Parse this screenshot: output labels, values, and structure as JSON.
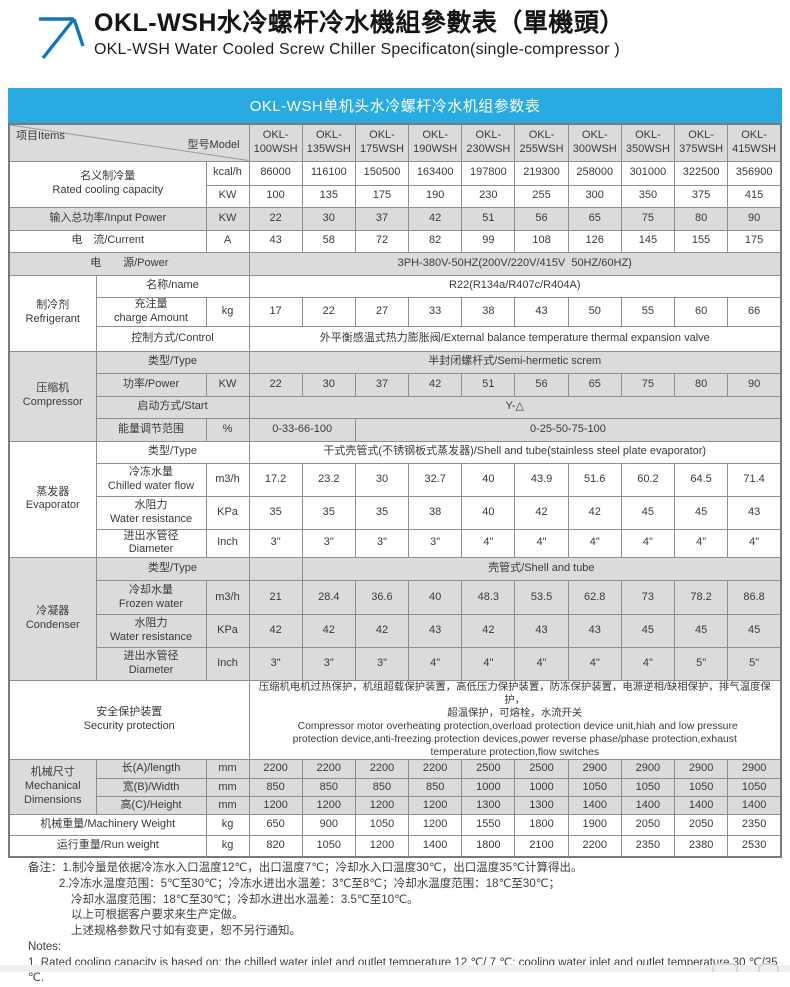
{
  "header": {
    "title_zh": "OKL-WSH水冷螺杆冷水機組參數表（單機頭）",
    "title_en": "OKL-WSH Water Cooled Screw Chiller Specificaton(single-compressor )"
  },
  "colors": {
    "banner_cyan": "#29ABE2",
    "row_gray": "#DBDBDB",
    "arrow_blue": "#1274BE",
    "border_gray": "#8F8F8F"
  },
  "table": {
    "banner": "OKL-WSH单机头水冷螺杆冷水机组参数表",
    "corner": {
      "items_label": "项目Items",
      "model_label": "型号Model"
    },
    "models": [
      "OKL-100WSH",
      "OKL-135WSH",
      "OKL-175WSH",
      "OKL-190WSH",
      "OKL-230WSH",
      "OKL-255WSH",
      "OKL-300WSH",
      "OKL-350WSH",
      "OKL-375WSH",
      "OKL-415WSH"
    ],
    "rows": [
      {
        "cells": [
          {
            "corner": true,
            "c": 3,
            "k": "corner"
          },
          {
            "t": [
              "OKL-",
              "100WSH"
            ],
            "k": "model"
          },
          {
            "t": [
              "OKL-",
              "135WSH"
            ],
            "k": "model"
          },
          {
            "t": [
              "OKL-",
              "175WSH"
            ],
            "k": "model"
          },
          {
            "t": [
              "OKL-",
              "190WSH"
            ],
            "k": "model"
          },
          {
            "t": [
              "OKL-",
              "230WSH"
            ],
            "k": "model"
          },
          {
            "t": [
              "OKL-",
              "255WSH"
            ],
            "k": "model"
          },
          {
            "t": [
              "OKL-",
              "300WSH"
            ],
            "k": "model"
          },
          {
            "t": [
              "OKL-",
              "350WSH"
            ],
            "k": "model"
          },
          {
            "t": [
              "OKL-",
              "375WSH"
            ],
            "k": "model"
          },
          {
            "t": [
              "OKL-",
              "415WSH"
            ],
            "k": "model"
          }
        ]
      },
      {
        "cells": [
          {
            "t": [
              "名义制冷量",
              "Rated cooling capacity"
            ],
            "c": 2,
            "r": 2,
            "k": "label"
          },
          {
            "t": "kcal/h",
            "k": "unit"
          },
          {
            "vv": [
              "86000",
              "116100",
              "150500",
              "163400",
              "197800",
              "219300",
              "258000",
              "301000",
              "322500",
              "356900"
            ]
          }
        ]
      },
      {
        "cells": [
          {
            "t": "KW",
            "k": "unit"
          },
          {
            "vv": [
              "100",
              "135",
              "175",
              "190",
              "230",
              "255",
              "300",
              "350",
              "375",
              "415"
            ]
          }
        ]
      },
      {
        "cells": [
          {
            "t": "输入总功率/Input Power",
            "c": 2,
            "k": "label"
          },
          {
            "t": "KW",
            "k": "unit"
          },
          {
            "vv": [
              "22",
              "30",
              "37",
              "42",
              "51",
              "56",
              "65",
              "75",
              "80",
              "90"
            ]
          }
        ]
      },
      {
        "cells": [
          {
            "t": "电　流/Current",
            "c": 2,
            "k": "label"
          },
          {
            "t": "A",
            "k": "unit"
          },
          {
            "vv": [
              "43",
              "58",
              "72",
              "82",
              "99",
              "108",
              "126",
              "145",
              "155",
              "175"
            ]
          }
        ]
      },
      {
        "cells": [
          {
            "t": "电　　源/Power",
            "c": 3,
            "k": "label"
          },
          {
            "t": "3PH-380V-50HZ(200V/220V/415V  50HZ/60HZ)",
            "c": 10,
            "k": "span"
          }
        ]
      },
      {
        "cells": [
          {
            "t": [
              "制冷剂",
              "Refrigerant"
            ],
            "r": 3,
            "k": "group"
          },
          {
            "t": "名称/name",
            "c": 2,
            "k": "label"
          },
          {
            "t": "R22(R134a/R407c/R404A)",
            "c": 10,
            "k": "span"
          }
        ]
      },
      {
        "cells": [
          {
            "t": [
              "充注量",
              "charge Amount"
            ],
            "k": "label"
          },
          {
            "t": "kg",
            "k": "unit"
          },
          {
            "vv": [
              "17",
              "22",
              "27",
              "33",
              "38",
              "43",
              "50",
              "55",
              "60",
              "66"
            ]
          }
        ]
      },
      {
        "cells": [
          {
            "t": "控制方式/Control",
            "c": 2,
            "k": "label"
          },
          {
            "t": "外平衡感温式热力膨胀阀/External balance temperature thermal expansion valve",
            "c": 10,
            "k": "span"
          }
        ]
      },
      {
        "cells": [
          {
            "t": [
              "压缩机",
              "Compressor"
            ],
            "r": 4,
            "k": "group"
          },
          {
            "t": "类型/Type",
            "c": 2,
            "k": "label"
          },
          {
            "t": "半封闭螺杆式/Semi-hermetic screm",
            "c": 10,
            "k": "span"
          }
        ]
      },
      {
        "cells": [
          {
            "t": "功率/Power",
            "k": "label"
          },
          {
            "t": "KW",
            "k": "unit"
          },
          {
            "vv": [
              "22",
              "30",
              "37",
              "42",
              "51",
              "56",
              "65",
              "75",
              "80",
              "90"
            ]
          }
        ]
      },
      {
        "cells": [
          {
            "t": "启动方式/Start",
            "c": 2,
            "k": "label"
          },
          {
            "t": "Y-△",
            "c": 10,
            "k": "span"
          }
        ]
      },
      {
        "cells": [
          {
            "t": "能量调节范围",
            "k": "label"
          },
          {
            "t": "%",
            "k": "unit"
          },
          {
            "t": "0-33-66-100",
            "c": 2,
            "k": "span"
          },
          {
            "t": "0-25-50-75-100",
            "c": 8,
            "k": "span"
          }
        ]
      },
      {
        "cells": [
          {
            "t": [
              "蒸发器",
              "Evaporator"
            ],
            "r": 4,
            "k": "group"
          },
          {
            "t": "类型/Type",
            "c": 2,
            "k": "label"
          },
          {
            "t": "干式壳管式(不锈钢板式蒸发器)/Shell and tube(stainless steel plate evaporator)",
            "c": 10,
            "k": "span"
          }
        ]
      },
      {
        "cells": [
          {
            "t": [
              "冷冻水量",
              "Chilled water flow"
            ],
            "k": "label"
          },
          {
            "t": "m3/h",
            "k": "unit"
          },
          {
            "vv": [
              "17.2",
              "23.2",
              "30",
              "32.7",
              "40",
              "43.9",
              "51.6",
              "60.2",
              "64.5",
              "71.4"
            ]
          }
        ]
      },
      {
        "cells": [
          {
            "t": [
              "水阻力",
              "Water resistance"
            ],
            "k": "label"
          },
          {
            "t": "KPa",
            "k": "unit"
          },
          {
            "vv": [
              "35",
              "35",
              "35",
              "38",
              "40",
              "42",
              "42",
              "45",
              "45",
              "43"
            ]
          }
        ]
      },
      {
        "cells": [
          {
            "t": [
              "进出水管径",
              "Diameter"
            ],
            "k": "label"
          },
          {
            "t": "Inch",
            "k": "unit"
          },
          {
            "vv": [
              "3\"",
              "3\"",
              "3\"",
              "3\"",
              "4\"",
              "4\"",
              "4\"",
              "4\"",
              "4\"",
              "4\""
            ]
          }
        ]
      },
      {
        "cells": [
          {
            "t": [
              "冷凝器",
              "Condenser"
            ],
            "r": 4,
            "k": "group"
          },
          {
            "t": "类型/Type",
            "c": 2,
            "k": "label"
          },
          {
            "t": "",
            "k": "span"
          },
          {
            "t": "壳管式/Shell and tube",
            "c": 9,
            "k": "span"
          }
        ]
      },
      {
        "cells": [
          {
            "t": [
              "冷却水量",
              "Frozen water"
            ],
            "k": "label"
          },
          {
            "t": "m3/h",
            "k": "unit"
          },
          {
            "vv": [
              "21",
              "28.4",
              "36.6",
              "40",
              "48.3",
              "53.5",
              "62.8",
              "73",
              "78.2",
              "86.8"
            ]
          }
        ]
      },
      {
        "cells": [
          {
            "t": [
              "水阻力",
              "Water resistance"
            ],
            "k": "label"
          },
          {
            "t": "KPa",
            "k": "unit"
          },
          {
            "vv": [
              "42",
              "42",
              "42",
              "43",
              "42",
              "43",
              "43",
              "45",
              "45",
              "45"
            ]
          }
        ]
      },
      {
        "cells": [
          {
            "t": [
              "进出水管径",
              "Diameter"
            ],
            "k": "label"
          },
          {
            "t": "Inch",
            "k": "unit"
          },
          {
            "vv": [
              "3\"",
              "3\"",
              "3\"",
              "4\"",
              "4\"",
              "4\"",
              "4\"",
              "4\"",
              "5\"",
              "5\""
            ]
          }
        ]
      },
      {
        "cells": [
          {
            "t": [
              "安全保护装置",
              "Security protection"
            ],
            "c": 3,
            "k": "label"
          },
          {
            "t": [
              "压缩机电机过热保护，机组超载保护装置，高低压力保护装置，防冻保护装置，电源逆相/缺相保护，排气温度保护，",
              "超温保护，可熔栓，水流开关",
              "  Compressor motor overheating protection,overload protection device unit,hiah and low pressure",
              "protection device,anti-freezing protection devices,power reverse phase/phase protection,exhaust",
              "temperature protection,flow switches"
            ],
            "c": 10,
            "k": "sec"
          }
        ]
      },
      {
        "cells": [
          {
            "t": [
              "机械尺寸",
              "Mechanical",
              "Dimensions"
            ],
            "r": 3,
            "k": "group"
          },
          {
            "t": "长(A)/length",
            "k": "label"
          },
          {
            "t": "mm",
            "k": "unit"
          },
          {
            "vv": [
              "2200",
              "2200",
              "2200",
              "2200",
              "2500",
              "2500",
              "2900",
              "2900",
              "2900",
              "2900"
            ]
          }
        ]
      },
      {
        "cells": [
          {
            "t": "宽(B)/Width",
            "k": "label"
          },
          {
            "t": "mm",
            "k": "unit"
          },
          {
            "vv": [
              "850",
              "850",
              "850",
              "850",
              "1000",
              "1000",
              "1050",
              "1050",
              "1050",
              "1050"
            ]
          }
        ]
      },
      {
        "cells": [
          {
            "t": "高(C)/Height",
            "k": "label"
          },
          {
            "t": "mm",
            "k": "unit"
          },
          {
            "vv": [
              "1200",
              "1200",
              "1200",
              "1200",
              "1300",
              "1300",
              "1400",
              "1400",
              "1400",
              "1400"
            ]
          }
        ]
      },
      {
        "cells": [
          {
            "t": "机械重量/Machinery Weight",
            "c": 2,
            "k": "label"
          },
          {
            "t": "kg",
            "k": "unit"
          },
          {
            "vv": [
              "650",
              "900",
              "1050",
              "1200",
              "1550",
              "1800",
              "1900",
              "2050",
              "2050",
              "2350"
            ]
          }
        ]
      },
      {
        "cells": [
          {
            "t": "运行重量/Run weight",
            "c": 2,
            "k": "label"
          },
          {
            "t": "kg",
            "k": "unit"
          },
          {
            "vv": [
              "820",
              "1050",
              "1200",
              "1400",
              "1800",
              "2100",
              "2200",
              "2350",
              "2380",
              "2530"
            ]
          }
        ]
      }
    ]
  },
  "notes": {
    "zh_lines": [
      "备注：1.制冷量是依据冷冻水入口温度12℃，出口温度7℃；冷却水入口温度30℃，出口温度35℃计算得出。",
      "2.冷冻水温度范围：5℃至30℃；冷冻水进出水温差：3℃至8℃；冷却水温度范围：18℃至30℃；",
      "冷却水温度范围：18℃至30℃；冷却水进出水温差：3.5℃至10℃。",
      "以上可根据客户要求来生产定做。",
      "上述规格参数尺寸如有变更，恕不另行通知。"
    ],
    "en_heading": "Notes:",
    "en_line": "1. Rated cooling capacity is based on: the chilled water inlet and outlet temperature 12 ℃/ 7 ℃; cooling water inlet and outlet temperature 30 ℃/35 ℃."
  }
}
